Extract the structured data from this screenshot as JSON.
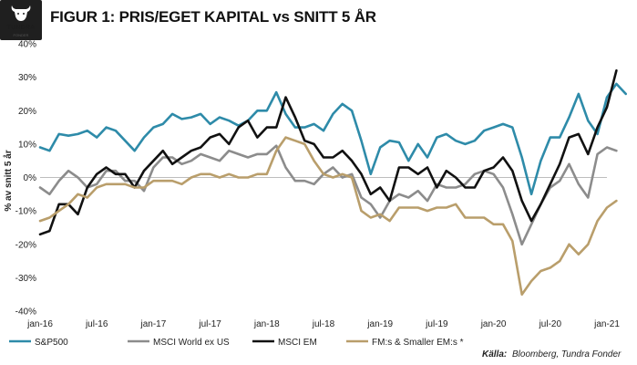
{
  "header": {
    "title": "FIGUR 1: PRIS/EGET KAPITAL vs SNITT 5 ÅR",
    "logo_text": "TUNDRA",
    "logo_sub": "FONDER"
  },
  "source": {
    "prefix": "Källa:",
    "text": "Bloomberg, Tundra Fonder"
  },
  "colors": {
    "sp500": "#2E8BA9",
    "world": "#8C8C8C",
    "em": "#111111",
    "frontier": "#B99E6B",
    "baseline": "#BDBDBD",
    "logo_bg": "#1f1f1f"
  },
  "chart_data": {
    "type": "line",
    "ylabel": "% av snitt 5 år",
    "ylim": [
      -40,
      40
    ],
    "yticks": [
      -40,
      -30,
      -20,
      -10,
      0,
      10,
      20,
      30,
      40
    ],
    "ytick_labels": [
      "-40%",
      "-30%",
      "-20%",
      "-10%",
      "0%",
      "10%",
      "20%",
      "30%",
      "40%"
    ],
    "x_tick_labels": [
      "jan-16",
      "jul-16",
      "jan-17",
      "jul-17",
      "jan-18",
      "jul-18",
      "jan-19",
      "jul-19",
      "jan-20",
      "jul-20",
      "jan-21"
    ],
    "x_start": "2016-01",
    "x_end": "2021-01",
    "legend_position": "bottom",
    "series": [
      {
        "name": "S&P500",
        "key": "sp500",
        "values": [
          9,
          8,
          13,
          12.5,
          13,
          14,
          12,
          15,
          14,
          11,
          8,
          12,
          15,
          16,
          19,
          17.5,
          18,
          19,
          16,
          18,
          17,
          15.5,
          17,
          20,
          20,
          25.5,
          19,
          15,
          15,
          16,
          14,
          19,
          22,
          20,
          11,
          1,
          9,
          11,
          10.5,
          5,
          10,
          6,
          12,
          13,
          11,
          10,
          11,
          14,
          15,
          16,
          15,
          6,
          -5,
          5,
          12,
          12,
          18,
          25,
          17,
          13,
          24,
          28,
          25
        ]
      },
      {
        "name": "MSCI World ex US",
        "key": "world",
        "values": [
          -3,
          -5,
          -1,
          2,
          0,
          -3,
          -2,
          2,
          2,
          -1,
          -1,
          -4,
          3,
          6,
          6,
          4,
          5,
          7,
          6,
          5,
          8,
          7,
          6,
          7,
          7,
          9.5,
          3,
          -1,
          -1,
          -2,
          1,
          3,
          0,
          1,
          -6,
          -8,
          -12,
          -7,
          -5,
          -6,
          -4,
          -7,
          -2,
          -3,
          -3,
          -2,
          1,
          2,
          1,
          -3,
          -11,
          -20,
          -14,
          -8,
          -3,
          -1,
          4,
          -2,
          -6,
          7,
          9,
          8
        ]
      },
      {
        "name": "MSCI EM",
        "key": "em",
        "values": [
          -17,
          -16,
          -8,
          -8,
          -11,
          -3,
          1,
          3,
          1,
          1,
          -3,
          2,
          5,
          8,
          4,
          6,
          8,
          9,
          12,
          13,
          10,
          15,
          17,
          12,
          15,
          15,
          24,
          18,
          11,
          10,
          6,
          6,
          8,
          5,
          1,
          -5,
          -3,
          -7,
          3,
          3,
          1,
          3,
          -3,
          2,
          0,
          -3,
          -3,
          2,
          3,
          6,
          2,
          -7,
          -13,
          -8,
          -2,
          4,
          12,
          13,
          7,
          15,
          21,
          32
        ]
      },
      {
        "name": "FM:s & Smaller EM:s *",
        "key": "frontier",
        "values": [
          -13,
          -12,
          -10,
          -8,
          -5,
          -6,
          -3,
          -2,
          -2,
          -2,
          -3,
          -3,
          -1,
          -1,
          -1,
          -2,
          0,
          1,
          1,
          0,
          1,
          0,
          0,
          1,
          1,
          8,
          12,
          11,
          10,
          5,
          1,
          0,
          1,
          0,
          -10,
          -12,
          -11,
          -13,
          -9,
          -9,
          -9,
          -10,
          -9,
          -9,
          -8,
          -12,
          -12,
          -12,
          -14,
          -14,
          -19,
          -35,
          -31,
          -28,
          -27,
          -25,
          -20,
          -23,
          -20,
          -13,
          -9,
          -7
        ]
      }
    ]
  }
}
